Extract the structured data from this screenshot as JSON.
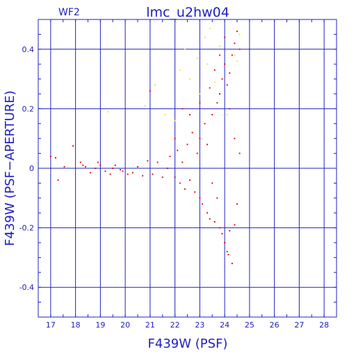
{
  "chart_data": {
    "type": "scatter",
    "panel_label": "WF2",
    "title": "lmc_u2hw04",
    "xlabel": "F439W (PSF)",
    "ylabel": "F439W (PSF−APERTURE)",
    "xlim": [
      16.5,
      28.5
    ],
    "ylim": [
      -0.5,
      0.5
    ],
    "xticks": [
      17,
      18,
      19,
      20,
      21,
      22,
      23,
      24,
      25,
      26,
      27,
      28
    ],
    "yticks": [
      -0.4,
      -0.2,
      0,
      0.2,
      0.4
    ],
    "xtick_labels": [
      "17",
      "18",
      "19",
      "20",
      "21",
      "22",
      "23",
      "24",
      "25",
      "26",
      "27",
      "28"
    ],
    "ytick_labels": [
      "-0.4",
      "-0.2",
      "0",
      "0.2",
      "0.4"
    ],
    "grid": true,
    "colors": {
      "axes": "#2020c0",
      "main_series": "#ee1111",
      "secondary_series": "#ffe030"
    },
    "series": [
      {
        "color": "#ee1111",
        "points": [
          [
            17.0,
            0.04
          ],
          [
            17.2,
            0.035
          ],
          [
            17.3,
            -0.04
          ],
          [
            17.55,
            0.005
          ],
          [
            17.9,
            0.075
          ],
          [
            18.2,
            0.02
          ],
          [
            18.3,
            0.01
          ],
          [
            18.4,
            0.005
          ],
          [
            18.6,
            -0.015
          ],
          [
            18.8,
            0.0
          ],
          [
            18.9,
            0.02
          ],
          [
            19.0,
            0.01
          ],
          [
            19.2,
            -0.01
          ],
          [
            19.4,
            -0.02
          ],
          [
            19.5,
            0.0
          ],
          [
            19.6,
            0.01
          ],
          [
            19.8,
            -0.005
          ],
          [
            19.9,
            -0.01
          ],
          [
            20.1,
            -0.02
          ],
          [
            20.3,
            -0.015
          ],
          [
            20.5,
            0.005
          ],
          [
            20.7,
            -0.025
          ],
          [
            20.9,
            0.025
          ],
          [
            21.0,
            0.26
          ],
          [
            21.1,
            -0.02
          ],
          [
            21.3,
            0.02
          ],
          [
            21.5,
            -0.03
          ],
          [
            21.7,
            0.0
          ],
          [
            21.8,
            0.04
          ],
          [
            22.0,
            -0.03
          ],
          [
            22.1,
            0.06
          ],
          [
            22.2,
            -0.05
          ],
          [
            22.3,
            0.02
          ],
          [
            22.4,
            -0.07
          ],
          [
            22.5,
            0.08
          ],
          [
            22.6,
            -0.04
          ],
          [
            22.7,
            0.12
          ],
          [
            22.8,
            -0.08
          ],
          [
            22.9,
            0.05
          ],
          [
            23.0,
            -0.1
          ],
          [
            23.0,
            0.1
          ],
          [
            23.1,
            -0.12
          ],
          [
            23.2,
            0.15
          ],
          [
            23.3,
            -0.15
          ],
          [
            23.3,
            0.08
          ],
          [
            23.4,
            -0.17
          ],
          [
            23.5,
            0.18
          ],
          [
            23.5,
            -0.05
          ],
          [
            23.6,
            -0.18
          ],
          [
            23.7,
            0.22
          ],
          [
            23.7,
            -0.1
          ],
          [
            23.8,
            -0.2
          ],
          [
            23.8,
            0.25
          ],
          [
            23.9,
            -0.22
          ],
          [
            23.9,
            0.3
          ],
          [
            24.0,
            -0.25
          ],
          [
            24.0,
            0.35
          ],
          [
            24.1,
            -0.28
          ],
          [
            24.1,
            0.28
          ],
          [
            24.15,
            -0.29
          ],
          [
            24.2,
            0.32
          ],
          [
            24.2,
            -0.21
          ],
          [
            24.3,
            0.38
          ],
          [
            24.3,
            -0.32
          ],
          [
            24.4,
            0.42
          ],
          [
            24.4,
            -0.19
          ],
          [
            24.5,
            0.46
          ],
          [
            24.5,
            -0.12
          ],
          [
            24.6,
            0.4
          ],
          [
            24.6,
            0.05
          ],
          [
            22.0,
            0.1
          ],
          [
            22.3,
            0.2
          ],
          [
            22.6,
            0.18
          ],
          [
            23.0,
            0.22
          ],
          [
            23.4,
            0.27
          ],
          [
            23.6,
            0.33
          ],
          [
            23.8,
            0.38
          ],
          [
            24.0,
            0.44
          ],
          [
            24.2,
            0.2
          ],
          [
            24.4,
            0.1
          ]
        ]
      },
      {
        "color": "#ffe030",
        "points": [
          [
            19.3,
            0.19
          ],
          [
            20.8,
            0.21
          ],
          [
            21.2,
            0.28
          ],
          [
            21.6,
            0.18
          ],
          [
            22.0,
            0.16
          ],
          [
            22.2,
            0.33
          ],
          [
            22.4,
            0.4
          ],
          [
            22.6,
            0.3
          ],
          [
            22.9,
            0.37
          ],
          [
            23.0,
            0.25
          ],
          [
            23.2,
            0.44
          ],
          [
            23.3,
            0.35
          ],
          [
            23.4,
            0.47
          ],
          [
            23.6,
            0.29
          ],
          [
            23.8,
            0.41
          ],
          [
            24.1,
            0.18
          ],
          [
            24.4,
            0.38
          ],
          [
            24.5,
            0.36
          ],
          [
            24.6,
            0.45
          ]
        ]
      }
    ]
  }
}
